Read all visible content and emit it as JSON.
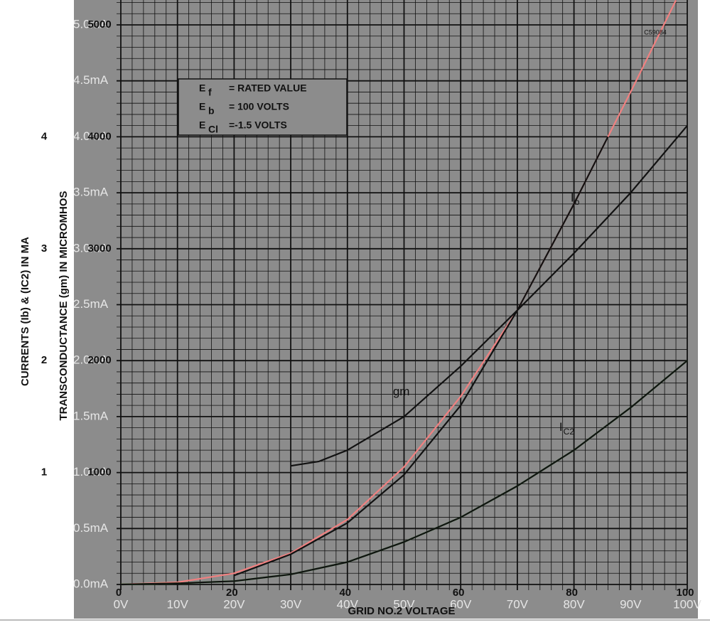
{
  "chart_data": {
    "type": "line",
    "code": "C59084",
    "xlabel": "GRID NO.2 VOLTAGE",
    "ylabel": "CURRENTS (Ib) & (IC2) IN MA",
    "y2label": "TRANSCONDUCTANCE (gm) IN MICROMHOS",
    "conditions": [
      {
        "symbol": "E",
        "sub": "f",
        "text": "= RATED VALUE"
      },
      {
        "symbol": "E",
        "sub": "b",
        "text": "= 100 VOLTS"
      },
      {
        "symbol": "E",
        "sub": "Cl",
        "text": "=-1.5 VOLTS"
      }
    ],
    "xlim": [
      0,
      100
    ],
    "xticks": [
      {
        "value": 0,
        "label": "0V"
      },
      {
        "value": 10,
        "label": "10V"
      },
      {
        "value": 20,
        "label": "20V"
      },
      {
        "value": 30,
        "label": "30V"
      },
      {
        "value": 40,
        "label": "40V"
      },
      {
        "value": 50,
        "label": "50V"
      },
      {
        "value": 60,
        "label": "60V"
      },
      {
        "value": 70,
        "label": "70V"
      },
      {
        "value": 80,
        "label": "80V"
      },
      {
        "value": 90,
        "label": "90V"
      },
      {
        "value": 100,
        "label": "100V"
      }
    ],
    "x_printed_ticks": [
      0,
      20,
      40,
      60,
      80,
      100
    ],
    "ylim": [
      0,
      5
    ],
    "yticks": [
      {
        "value": 0,
        "label": "0.0mA"
      },
      {
        "value": 0.5,
        "label": "0.5mA"
      },
      {
        "value": 1,
        "label": "1.0mA"
      },
      {
        "value": 1.5,
        "label": "1.5mA"
      },
      {
        "value": 2,
        "label": "2.0mA"
      },
      {
        "value": 2.5,
        "label": "2.5mA"
      },
      {
        "value": 3,
        "label": "3.0mA"
      },
      {
        "value": 3.5,
        "label": "3.5mA"
      },
      {
        "value": 4,
        "label": "4.0mA"
      },
      {
        "value": 4.5,
        "label": "4.5mA"
      },
      {
        "value": 5,
        "label": "5.0mA"
      }
    ],
    "current_ticks": [
      1,
      2,
      3,
      4
    ],
    "y2lim": [
      0,
      5000
    ],
    "y2ticks": [
      1000,
      2000,
      3000,
      4000,
      5000
    ],
    "grid": true,
    "series": [
      {
        "color": "#f08080",
        "x": [
          0,
          10,
          20,
          30,
          40,
          50,
          60,
          70,
          80,
          90,
          98
        ],
        "values": [
          0,
          0.02,
          0.1,
          0.28,
          0.58,
          1.05,
          1.68,
          2.45,
          3.4,
          4.4,
          5.22
        ]
      },
      {
        "color": "#33cc33",
        "x": [
          0,
          10,
          20,
          30,
          40,
          50,
          60,
          70,
          80,
          90,
          100
        ],
        "values": [
          0,
          0.01,
          0.03,
          0.09,
          0.2,
          0.38,
          0.6,
          0.88,
          1.2,
          1.58,
          2.0
        ]
      },
      {
        "name": "I",
        "sub": "b",
        "color": "#111111",
        "label_at": [
          80,
          3.45
        ],
        "x": [
          20,
          30,
          40,
          50,
          60,
          70,
          80,
          86
        ],
        "values": [
          0.08,
          0.27,
          0.55,
          0.98,
          1.6,
          2.45,
          3.4,
          4.0
        ]
      },
      {
        "name": "gm",
        "color": "#111111",
        "axis": "y2",
        "label_at": [
          51,
          1720
        ],
        "x": [
          30,
          35,
          40,
          50,
          60,
          70,
          80,
          90,
          100
        ],
        "values": [
          1060,
          1100,
          1200,
          1500,
          1950,
          2450,
          2960,
          3500,
          4100
        ]
      },
      {
        "name": "I",
        "sub": "C2",
        "color": "#111111",
        "label_at": [
          78,
          1.4
        ],
        "x": [
          0,
          10,
          20,
          30,
          40,
          50,
          60,
          70,
          80,
          90,
          100
        ],
        "values": [
          0,
          0.01,
          0.03,
          0.09,
          0.2,
          0.38,
          0.6,
          0.88,
          1.2,
          1.58,
          2.0
        ]
      }
    ]
  }
}
